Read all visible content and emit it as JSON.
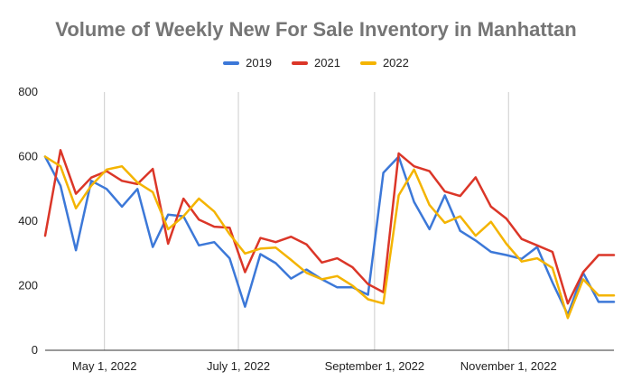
{
  "chart_data": {
    "type": "line",
    "title": "Volume of Weekly New For Sale Inventory in Manhattan",
    "xlabel": "",
    "ylabel": "",
    "ylim": [
      0,
      800
    ],
    "yticks": [
      0,
      200,
      400,
      600,
      800
    ],
    "xlim": [
      "2022-04-04",
      "2022-12-19"
    ],
    "xticks": [
      {
        "date": "2022-05-01",
        "label": "May 1, 2022"
      },
      {
        "date": "2022-07-01",
        "label": "July 1, 2022"
      },
      {
        "date": "2022-09-01",
        "label": "September 1, 2022"
      },
      {
        "date": "2022-11-01",
        "label": "November 1, 2022"
      }
    ],
    "grid": "vertical lines at date ticks, horizontal baseline",
    "legend_position": "top",
    "x": [
      "2022-04-04",
      "2022-04-11",
      "2022-04-18",
      "2022-04-25",
      "2022-05-02",
      "2022-05-09",
      "2022-05-16",
      "2022-05-23",
      "2022-05-30",
      "2022-06-06",
      "2022-06-13",
      "2022-06-20",
      "2022-06-27",
      "2022-07-04",
      "2022-07-11",
      "2022-07-18",
      "2022-07-25",
      "2022-08-01",
      "2022-08-08",
      "2022-08-15",
      "2022-08-22",
      "2022-08-29",
      "2022-09-05",
      "2022-09-12",
      "2022-09-19",
      "2022-09-26",
      "2022-10-03",
      "2022-10-10",
      "2022-10-17",
      "2022-10-24",
      "2022-10-31",
      "2022-11-07",
      "2022-11-14",
      "2022-11-21",
      "2022-11-28",
      "2022-12-05",
      "2022-12-12",
      "2022-12-19"
    ],
    "series": [
      {
        "name": "2019",
        "color": "#3c78d8",
        "values": [
          600,
          510,
          310,
          525,
          500,
          445,
          500,
          320,
          420,
          415,
          325,
          335,
          285,
          135,
          298,
          270,
          222,
          250,
          220,
          195,
          195,
          172,
          550,
          600,
          460,
          375,
          480,
          370,
          340,
          305,
          295,
          283,
          320,
          210,
          110,
          240,
          150,
          150
        ]
      },
      {
        "name": "2021",
        "color": "#db3628",
        "values": [
          355,
          620,
          485,
          535,
          555,
          525,
          515,
          562,
          330,
          470,
          405,
          383,
          380,
          242,
          348,
          335,
          352,
          328,
          272,
          285,
          257,
          205,
          180,
          610,
          570,
          555,
          492,
          478,
          536,
          445,
          408,
          345,
          325,
          305,
          145,
          242,
          295,
          295
        ]
      },
      {
        "name": "2022",
        "color": "#f4b400",
        "values": [
          600,
          570,
          440,
          510,
          560,
          570,
          520,
          490,
          375,
          415,
          470,
          430,
          360,
          300,
          315,
          318,
          280,
          240,
          220,
          230,
          200,
          158,
          145,
          480,
          560,
          450,
          395,
          415,
          355,
          398,
          330,
          275,
          285,
          255,
          100,
          220,
          170,
          170
        ]
      }
    ]
  }
}
